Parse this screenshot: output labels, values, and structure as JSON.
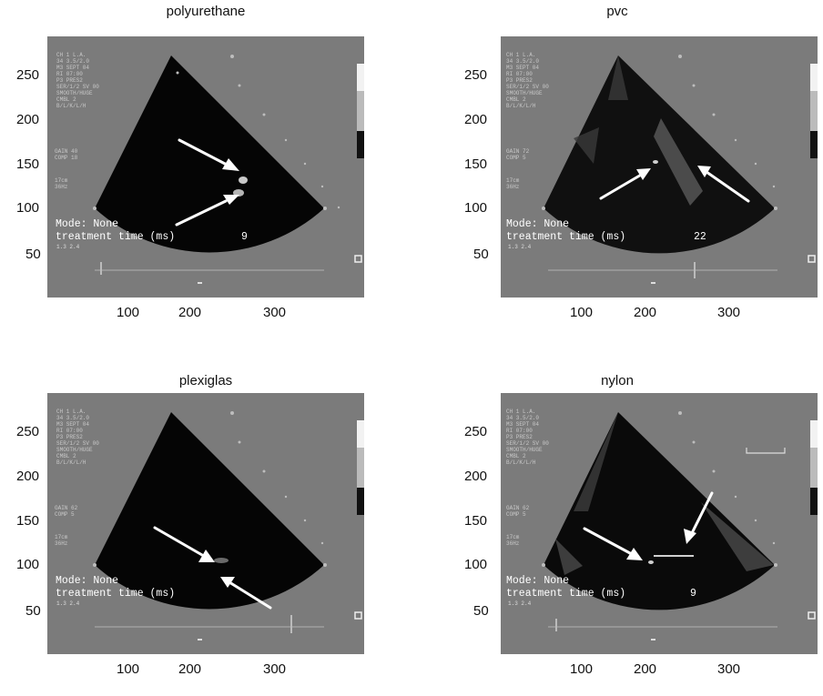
{
  "panels": [
    {
      "title": "polyurethane",
      "mode_label": "Mode: None",
      "treatment_label": "treatment time (ms)",
      "treatment_value": "9"
    },
    {
      "title": "pvc",
      "mode_label": "Mode: None",
      "treatment_label": "treatment time (ms)",
      "treatment_value": "22"
    },
    {
      "title": "plexiglas",
      "mode_label": "Mode: None",
      "treatment_label": "treatment time (ms)",
      "treatment_value": ""
    },
    {
      "title": "nylon",
      "mode_label": "Mode: None",
      "treatment_label": "treatment time (ms)",
      "treatment_value": "9"
    }
  ],
  "axes": {
    "y_ticks": [
      "250",
      "200",
      "150",
      "100",
      "50"
    ],
    "x_ticks": [
      "100",
      "200",
      "300"
    ]
  }
}
